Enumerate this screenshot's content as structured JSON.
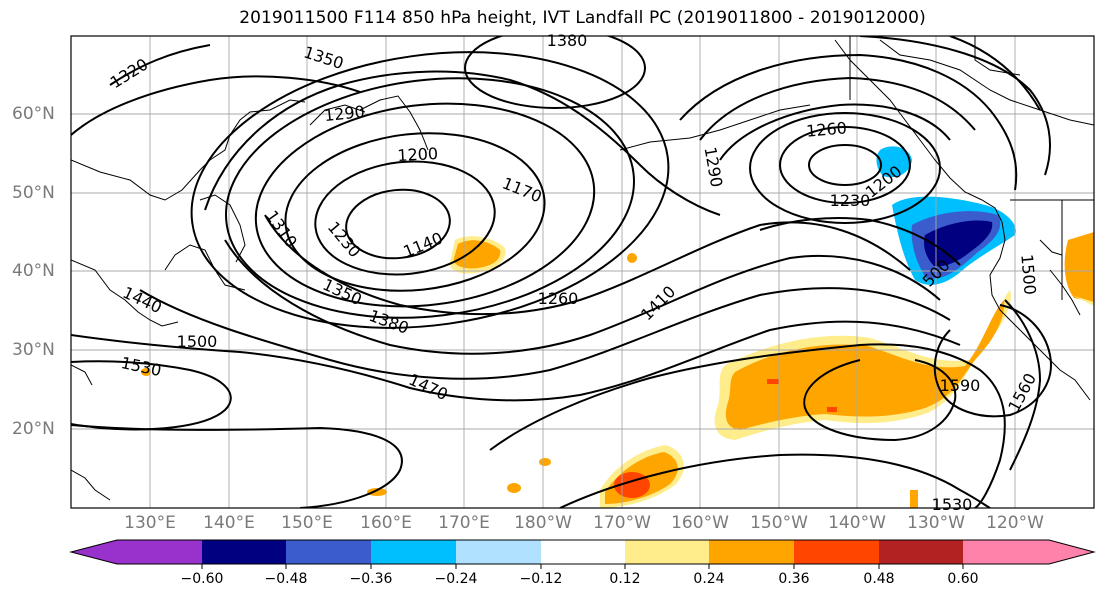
{
  "title": "2019011500 F114 850 hPa height, IVT Landfall PC (2019011800 - 2019012000)",
  "longitude_labels": [
    "130°E",
    "140°E",
    "150°E",
    "160°E",
    "170°E",
    "180°W",
    "170°W",
    "160°W",
    "150°W",
    "140°W",
    "130°W",
    "120°W"
  ],
  "latitude_labels": [
    "60°N",
    "50°N",
    "40°N",
    "30°N",
    "20°N"
  ],
  "contour_labels": [
    "1320",
    "1350",
    "1380",
    "1290",
    "1200",
    "1170",
    "1140",
    "1230",
    "1310",
    "1260",
    "1290",
    "1200",
    "1230",
    "1440",
    "1500",
    "1350",
    "1380",
    "1260",
    "1410",
    "1530",
    "1470",
    "500",
    "1500",
    "1590",
    "1560",
    "1530"
  ],
  "colorbar": {
    "ticks": [
      "−0.60",
      "−0.48",
      "−0.36",
      "−0.24",
      "−0.12",
      "0.12",
      "0.24",
      "0.36",
      "0.48",
      "0.60"
    ],
    "colors": [
      "#9932cc",
      "#000080",
      "#3a5ccd",
      "#00bfff",
      "#b0e2ff",
      "#ffffff",
      "#ffec8b",
      "#ffa500",
      "#ff4500",
      "#b22222",
      "#ff82ab"
    ]
  },
  "colors": {
    "pc_negative_strong": "#000080",
    "pc_negative_medium": "#3a5ccd",
    "pc_negative_weak": "#00bfff",
    "pc_negative_light": "#b0e2ff",
    "pc_positive_light": "#ffec8b",
    "pc_positive_medium": "#ffa500",
    "pc_positive_strong": "#ff4500"
  }
}
